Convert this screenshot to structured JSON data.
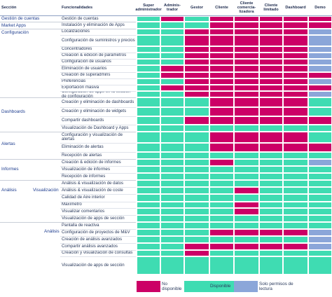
{
  "colors": {
    "no": "#cc0066",
    "yes": "#3fdcb2",
    "read": "#8ba6d9"
  },
  "headers": {
    "section": "Sección",
    "feature": "Funcionalidades",
    "roles": [
      "Super administrador",
      "Adminis-trador",
      "Gestor",
      "Cliente",
      "Cliente comercia-lizadora",
      "Cliente limitado",
      "Dashboard",
      "Demo"
    ]
  },
  "sections": [
    {
      "label": "Gestión de cuentas"
    },
    {
      "label": "Market Apps"
    },
    {
      "label": "Configuración"
    },
    {
      "label": "Dashboards"
    },
    {
      "label": "Alertas"
    },
    {
      "label": "Informes"
    },
    {
      "label": "Análisis"
    },
    {
      "label": "Visualización"
    },
    {
      "label": "Análisis"
    }
  ],
  "rows": [
    {
      "feature": "Gestión de cuentas",
      "cells": [
        "Y",
        "N",
        "Y",
        "N",
        "N",
        "N",
        "N",
        "N"
      ]
    },
    {
      "feature": "Instalación y eliminación de Apps",
      "cells": [
        "Y",
        "Y",
        "Y",
        "N",
        "N",
        "N",
        "N",
        "N"
      ]
    },
    {
      "feature": "Localizaciones",
      "cells": [
        "Y",
        "Y",
        "N",
        "N",
        "N",
        "N",
        "N",
        "R"
      ]
    },
    {
      "feature": "Configuración de suministros y precios",
      "cells": [
        "Y",
        "Y",
        "N",
        "N",
        "N",
        "N",
        "N",
        "R"
      ]
    },
    {
      "feature": "Concentradores",
      "cells": [
        "Y",
        "Y",
        "N",
        "N",
        "N",
        "N",
        "N",
        "R"
      ]
    },
    {
      "feature": "Creación & edición de parámetros",
      "cells": [
        "Y",
        "Y",
        "N",
        "N",
        "N",
        "N",
        "N",
        "R"
      ]
    },
    {
      "feature": "Configuración de usuarios",
      "cells": [
        "Y",
        "Y",
        "N",
        "N",
        "N",
        "N",
        "N",
        "R"
      ]
    },
    {
      "feature": "Eliminación de usuarios",
      "cells": [
        "Y",
        "N",
        "N",
        "N",
        "N",
        "N",
        "N",
        "R"
      ]
    },
    {
      "feature": "Creación de superadmins",
      "cells": [
        "Y",
        "N",
        "N",
        "N",
        "N",
        "N",
        "N",
        "N"
      ]
    },
    {
      "feature": "Preferencias",
      "cells": [
        "Y",
        "Y",
        "N",
        "N",
        "N",
        "N",
        "N",
        "R"
      ]
    },
    {
      "feature": "Exportación masiva",
      "cells": [
        "Y",
        "N",
        "N",
        "N",
        "N",
        "N",
        "N",
        "N"
      ]
    },
    {
      "feature": "Configuración de apps en la sección de configuración",
      "cells": [
        "Y",
        "Y",
        "N",
        "N",
        "N",
        "N",
        "N",
        "R"
      ]
    },
    {
      "feature": "Creación y eliminación de dashboards",
      "cells": [
        "Y",
        "Y",
        "Y",
        "N",
        "N",
        "N",
        "N",
        "Y"
      ]
    },
    {
      "feature": "Creación y eliminación de widgets",
      "cells": [
        "Y",
        "Y",
        "Y",
        "N",
        "N",
        "N",
        "N",
        "Y"
      ]
    },
    {
      "feature": "Compartir dashboards",
      "cells": [
        "Y",
        "Y",
        "N",
        "N",
        "N",
        "N",
        "N",
        "N"
      ]
    },
    {
      "feature": "Visualización de Dashboard y Apps",
      "cells": [
        "Y",
        "Y",
        "Y",
        "Y",
        "Y",
        "Y",
        "Y",
        "Y"
      ]
    },
    {
      "feature": "Configuración y visualización de alertas",
      "cells": [
        "Y",
        "Y",
        "Y",
        "N",
        "N",
        "N",
        "N",
        "Y"
      ]
    },
    {
      "feature": "Eliminación de alertas",
      "cells": [
        "Y",
        "Y",
        "Y",
        "N",
        "N",
        "N",
        "N",
        "N"
      ]
    },
    {
      "feature": "Recepción de alertas",
      "cells": [
        "Y",
        "Y",
        "Y",
        "Y",
        "Y",
        "Y",
        "Y",
        "Y"
      ]
    },
    {
      "feature": "Creación & edición de informes",
      "cells": [
        "Y",
        "Y",
        "Y",
        "N",
        "Y",
        "Y",
        "Y",
        "R"
      ]
    },
    {
      "feature": "Visualización de informes",
      "cells": [
        "Y",
        "Y",
        "Y",
        "Y",
        "Y",
        "Y",
        "Y",
        "Y"
      ]
    },
    {
      "feature": "Recepción de informes",
      "cells": [
        "Y",
        "Y",
        "Y",
        "Y",
        "Y",
        "Y",
        "Y",
        "Y"
      ]
    },
    {
      "feature": "Análisis & visualización de datos",
      "cells": [
        "Y",
        "Y",
        "Y",
        "Y",
        "Y",
        "Y",
        "Y",
        "Y"
      ]
    },
    {
      "feature": "Análisis & visualización de coste",
      "cells": [
        "Y",
        "Y",
        "Y",
        "Y",
        "N",
        "Y",
        "Y",
        "Y"
      ]
    },
    {
      "feature": "Calidad de Aire interior",
      "cells": [
        "Y",
        "Y",
        "Y",
        "Y",
        "Y",
        "Y",
        "Y",
        "Y"
      ]
    },
    {
      "feature": "Maxímetro",
      "cells": [
        "Y",
        "Y",
        "Y",
        "Y",
        "N",
        "Y",
        "Y",
        "Y"
      ]
    },
    {
      "feature": "Visualizar comentarios",
      "cells": [
        "Y",
        "Y",
        "Y",
        "Y",
        "N",
        "Y",
        "Y",
        "Y"
      ]
    },
    {
      "feature": "Visualización de apps de sección",
      "cells": [
        "Y",
        "Y",
        "Y",
        "Y",
        "Y",
        "Y",
        "Y",
        "Y"
      ]
    },
    {
      "feature": "Pantalla de reactiva",
      "cells": [
        "Y",
        "Y",
        "Y",
        "Y",
        "Y",
        "Y",
        "Y",
        "Y"
      ]
    },
    {
      "feature": "Configuración de proyectos de M&V",
      "cells": [
        "Y",
        "Y",
        "Y",
        "N",
        "N",
        "N",
        "N",
        "R"
      ]
    },
    {
      "feature": "Creación de análisis avanzados",
      "cells": [
        "Y",
        "Y",
        "Y",
        "Y",
        "Y",
        "Y",
        "Y",
        "R"
      ]
    },
    {
      "feature": "Compartir análisis avanzados",
      "cells": [
        "Y",
        "Y",
        "N",
        "N",
        "N",
        "N",
        "N",
        "R"
      ]
    },
    {
      "feature": "Creación y visualización de consultas",
      "cells": [
        "Y",
        "Y",
        "N",
        "Y",
        "Y",
        "Y",
        "Y",
        "Y"
      ]
    },
    {
      "feature": "Visualización de apps de sección",
      "cells": [
        "Y",
        "Y",
        "Y",
        "Y",
        "Y",
        "Y",
        "Y",
        "Y"
      ]
    }
  ],
  "legend": {
    "no": "No disponible",
    "yes": "Disponible",
    "read": "Solo permisos de lectura"
  }
}
